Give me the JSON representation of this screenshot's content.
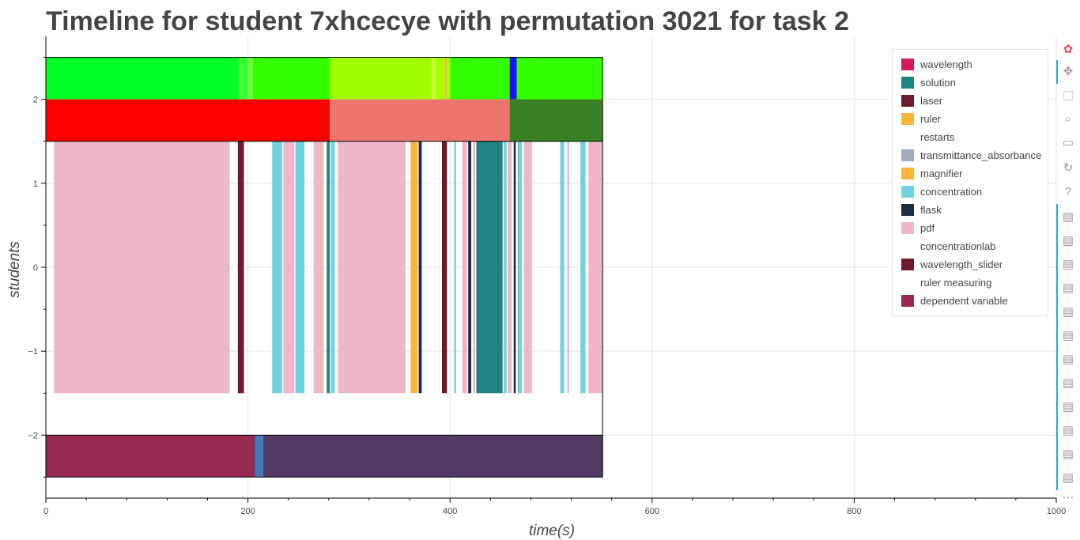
{
  "title": "Timeline for student 7xhcecye with permutation 3021 for task 2",
  "chart_data": {
    "type": "timeline",
    "xlabel": "time(s)",
    "ylabel": "students",
    "xlim": [
      0,
      1000
    ],
    "ylim": [
      -2.75,
      2.75
    ],
    "x_ticks": [
      0,
      200,
      400,
      600,
      800,
      1000
    ],
    "y_ticks": [
      -2,
      -1,
      0,
      1,
      2
    ],
    "y_tick_labels": [
      "−2",
      "−1",
      "0",
      "1",
      "2"
    ],
    "grid": true,
    "legend_position": "top-right",
    "rows": [
      {
        "y": [
          2.0,
          2.5
        ],
        "segments": [
          {
            "start": 0,
            "end": 191,
            "color": "#00ff26"
          },
          {
            "start": 191,
            "end": 193,
            "color": "#55ff33"
          },
          {
            "start": 193,
            "end": 200,
            "color": "#33ff33"
          },
          {
            "start": 200,
            "end": 205,
            "color": "#77ff44"
          },
          {
            "start": 205,
            "end": 281,
            "color": "#33ff00"
          },
          {
            "start": 281,
            "end": 382,
            "color": "#a3ff00"
          },
          {
            "start": 382,
            "end": 386,
            "color": "#c4ff3a"
          },
          {
            "start": 386,
            "end": 395,
            "color": "#a3ff00"
          },
          {
            "start": 395,
            "end": 397,
            "color": "#ffb833"
          },
          {
            "start": 397,
            "end": 400,
            "color": "#a3ff00"
          },
          {
            "start": 400,
            "end": 459,
            "color": "#33ff00"
          },
          {
            "start": 459,
            "end": 466,
            "color": "#2010ff"
          },
          {
            "start": 466,
            "end": 551,
            "color": "#33ff00"
          }
        ]
      },
      {
        "y": [
          1.5,
          2.0
        ],
        "segments": [
          {
            "start": 0,
            "end": 281,
            "color": "#ff0000"
          },
          {
            "start": 281,
            "end": 459,
            "color": "#ee746e"
          },
          {
            "start": 459,
            "end": 551,
            "color": "#398124"
          }
        ]
      },
      {
        "y": [
          -1.5,
          1.5
        ],
        "segments": [
          {
            "start": 8,
            "end": 182,
            "color": "#efb8c9"
          },
          {
            "start": 190,
            "end": 196,
            "color": "#6c1a2c"
          },
          {
            "start": 224,
            "end": 234,
            "color": "#70d4de"
          },
          {
            "start": 235,
            "end": 246,
            "color": "#efb8c9"
          },
          {
            "start": 247,
            "end": 256,
            "color": "#70d4de"
          },
          {
            "start": 265,
            "end": 275,
            "color": "#efb8c9"
          },
          {
            "start": 278,
            "end": 281,
            "color": "#1f8280"
          },
          {
            "start": 282,
            "end": 286,
            "color": "#70d4de"
          },
          {
            "start": 289,
            "end": 356,
            "color": "#efb8c9"
          },
          {
            "start": 361,
            "end": 368,
            "color": "#fbb53c"
          },
          {
            "start": 369,
            "end": 372,
            "color": "#1a2f44"
          },
          {
            "start": 392,
            "end": 397,
            "color": "#6c1a2c"
          },
          {
            "start": 404,
            "end": 406,
            "color": "#70d4de"
          },
          {
            "start": 412,
            "end": 417,
            "color": "#efb8c9"
          },
          {
            "start": 418,
            "end": 421,
            "color": "#1a2f44"
          },
          {
            "start": 423,
            "end": 425,
            "color": "#efb8c9"
          },
          {
            "start": 426,
            "end": 452,
            "color": "#1f8280"
          },
          {
            "start": 453,
            "end": 456,
            "color": "#70d4de"
          },
          {
            "start": 457,
            "end": 461,
            "color": "#efb8c9"
          },
          {
            "start": 463,
            "end": 465,
            "color": "#1a2f44"
          },
          {
            "start": 467,
            "end": 471,
            "color": "#70d4de"
          },
          {
            "start": 473,
            "end": 481,
            "color": "#efb8c9"
          },
          {
            "start": 509,
            "end": 513,
            "color": "#70d4de"
          },
          {
            "start": 516,
            "end": 518,
            "color": "#efb8c9"
          },
          {
            "start": 529,
            "end": 534,
            "color": "#70d4de"
          },
          {
            "start": 537,
            "end": 551,
            "color": "#efb8c9"
          }
        ]
      },
      {
        "y": [
          -2.5,
          -2.0
        ],
        "segments": [
          {
            "start": 0,
            "end": 207,
            "color": "#962952"
          },
          {
            "start": 207,
            "end": 215,
            "color": "#3a7dc1"
          },
          {
            "start": 215,
            "end": 551,
            "color": "#523a62"
          }
        ]
      }
    ],
    "legend": [
      {
        "label": "wavelength",
        "color": "#d61c56"
      },
      {
        "label": "solution",
        "color": "#1f8280"
      },
      {
        "label": "laser",
        "color": "#6c1a2c"
      },
      {
        "label": "ruler",
        "color": "#fbb53c"
      },
      {
        "label": "restarts",
        "color": "#ffffff"
      },
      {
        "label": "transmittance_absorbance",
        "color": "#9eacbd"
      },
      {
        "label": "magnifier",
        "color": "#fbb53c"
      },
      {
        "label": "concentration",
        "color": "#70d4de"
      },
      {
        "label": "flask",
        "color": "#1a2f44"
      },
      {
        "label": "pdf",
        "color": "#efb8c9"
      },
      {
        "label": "concentrationlab",
        "color": "#ffffff"
      },
      {
        "label": "wavelength_slider",
        "color": "#6c1a2c"
      },
      {
        "label": "ruler measuring",
        "color": "#ffffff"
      },
      {
        "label": "dependent variable",
        "color": "#962952"
      }
    ]
  },
  "toolbar": {
    "icons": [
      "bokeh-logo-icon",
      "pan-icon",
      "box-zoom-icon",
      "wheel-zoom-icon",
      "save-icon",
      "reset-icon",
      "help-icon",
      "hover-icon",
      "hover-icon",
      "hover-icon",
      "hover-icon",
      "hover-icon",
      "hover-icon",
      "hover-icon",
      "hover-icon",
      "hover-icon",
      "hover-icon",
      "hover-icon",
      "hover-icon",
      "more-icon"
    ]
  }
}
